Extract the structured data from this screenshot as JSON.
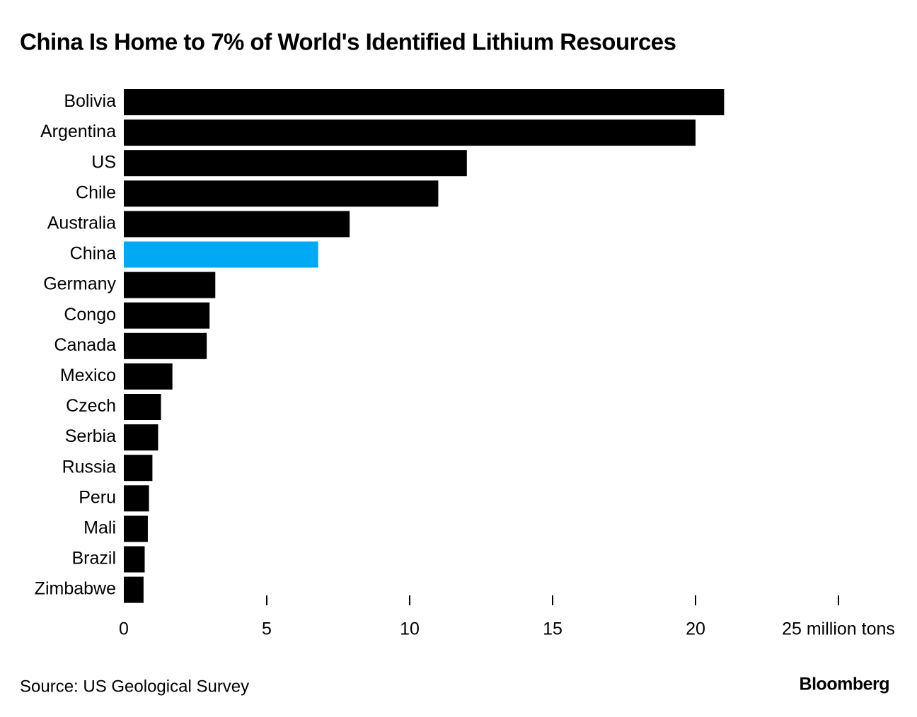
{
  "chart_data": {
    "type": "hbar",
    "title": "China Is Home to 7% of World's Identified Lithium Resources",
    "categories": [
      "Bolivia",
      "Argentina",
      "US",
      "Chile",
      "Australia",
      "China",
      "Germany",
      "Congo",
      "Canada",
      "Mexico",
      "Czech",
      "Serbia",
      "Russia",
      "Peru",
      "Mali",
      "Brazil",
      "Zimbabwe"
    ],
    "values": [
      21,
      20,
      12,
      11,
      7.9,
      6.8,
      3.2,
      3.0,
      2.9,
      1.7,
      1.3,
      1.2,
      1.0,
      0.88,
      0.84,
      0.73,
      0.69
    ],
    "colors": [
      "#000000",
      "#000000",
      "#000000",
      "#000000",
      "#000000",
      "#00a9f4",
      "#000000",
      "#000000",
      "#000000",
      "#000000",
      "#000000",
      "#000000",
      "#000000",
      "#000000",
      "#000000",
      "#000000",
      "#000000"
    ],
    "xlim": [
      0,
      25
    ],
    "xticks": [
      0,
      5,
      10,
      15,
      20,
      {
        "value": 25,
        "label": "25 million tons"
      }
    ],
    "source": "Source: US Geological Survey",
    "brand": "Bloomberg"
  }
}
